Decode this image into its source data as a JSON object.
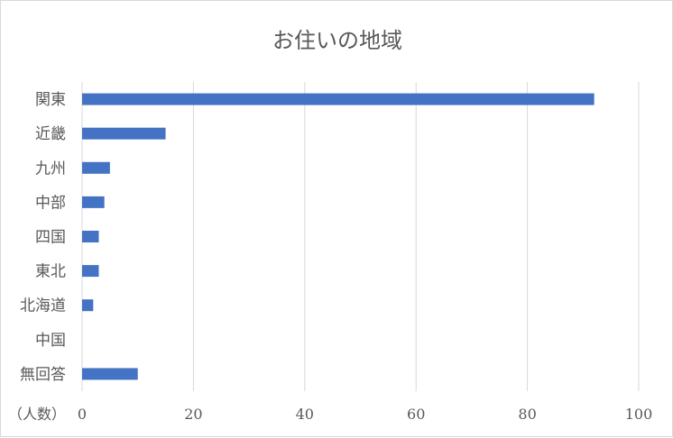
{
  "chart_data": {
    "type": "bar",
    "orientation": "horizontal",
    "title": "お住いの地域",
    "x_unit_label": "（人数）",
    "categories": [
      "関東",
      "近畿",
      "九州",
      "中部",
      "四国",
      "東北",
      "北海道",
      "中国",
      "無回答"
    ],
    "values": [
      92,
      15,
      5,
      4,
      3,
      3,
      2,
      0,
      10
    ],
    "xlim": [
      0,
      100
    ],
    "x_ticks": [
      0,
      20,
      40,
      60,
      80,
      100
    ],
    "grid": true,
    "legend": "none",
    "bar_color": "#4472c4"
  }
}
